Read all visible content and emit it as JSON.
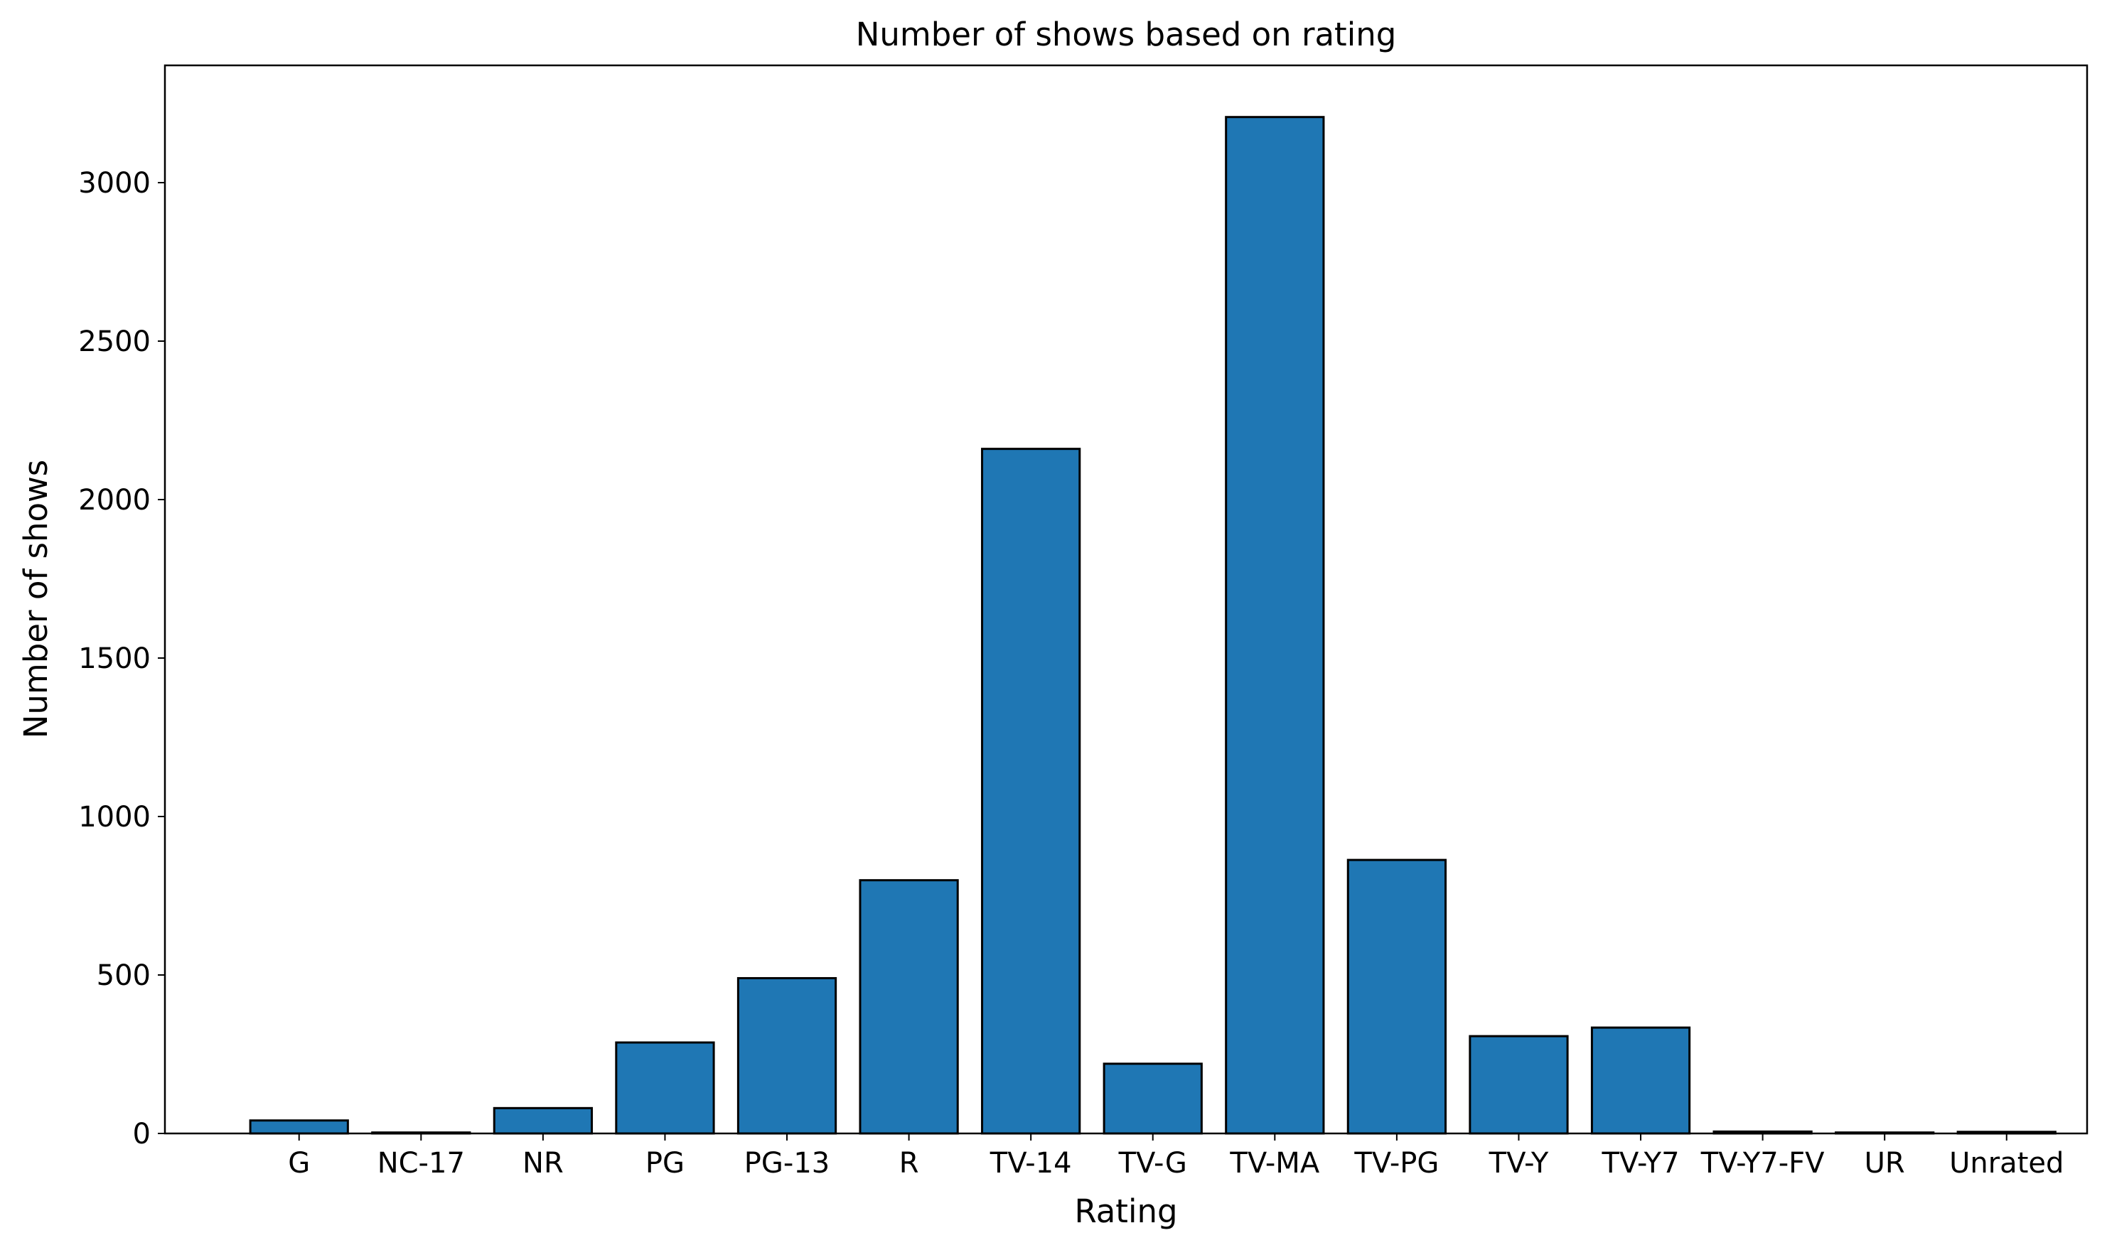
{
  "chart_data": {
    "type": "bar",
    "title": "Number of shows based on rating",
    "xlabel": "Rating",
    "ylabel": "Number of shows",
    "categories": [
      "G",
      "NC-17",
      "NR",
      "PG",
      "PG-13",
      "R",
      "TV-14",
      "TV-G",
      "TV-MA",
      "TV-PG",
      "TV-Y",
      "TV-Y7",
      "TV-Y7-FV",
      "UR",
      "Unrated"
    ],
    "values": [
      41,
      3,
      80,
      287,
      490,
      799,
      2160,
      220,
      3207,
      863,
      307,
      334,
      6,
      3,
      5
    ],
    "ylim": [
      0,
      3370
    ],
    "yticks": [
      0,
      500,
      1000,
      1500,
      2000,
      2500,
      3000
    ],
    "grid": false,
    "legend": "none",
    "bar_color": "#1f77b4",
    "edge_color": "#000000"
  }
}
